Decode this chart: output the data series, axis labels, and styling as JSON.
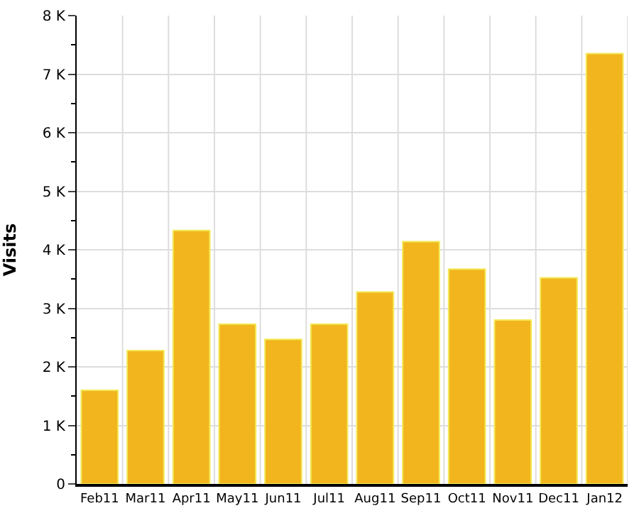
{
  "chart_data": {
    "type": "bar",
    "ylabel": "Visits",
    "categories": [
      "Feb11",
      "Mar11",
      "Apr11",
      "May11",
      "Jun11",
      "Jul11",
      "Aug11",
      "Sep11",
      "Oct11",
      "Nov11",
      "Dec11",
      "Jan12"
    ],
    "series": [
      {
        "color": "#f2b51e",
        "values": [
          1600,
          2280,
          4330,
          2730,
          2470,
          2730,
          3280,
          4140,
          3670,
          2800,
          3520,
          7350
        ]
      }
    ],
    "ylim": [
      0,
      8000
    ],
    "yticks": [
      0,
      {
        "value": 1000,
        "label": "1 K"
      },
      {
        "value": 2000,
        "label": "2 K"
      },
      {
        "value": 3000,
        "label": "3 K"
      },
      {
        "value": 4000,
        "label": "4 K"
      },
      {
        "value": 5000,
        "label": "5 K"
      },
      {
        "value": 6000,
        "label": "6 K"
      },
      {
        "value": 7000,
        "label": "7 K"
      },
      {
        "value": 8000,
        "label": "8 K"
      }
    ],
    "grid": true
  }
}
